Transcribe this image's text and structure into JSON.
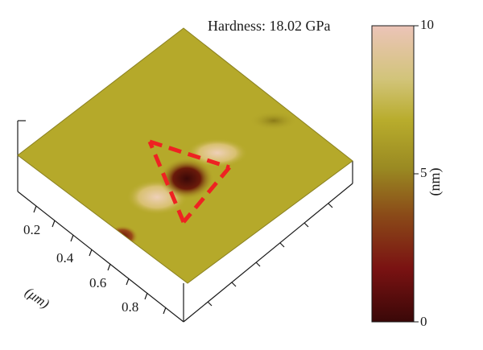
{
  "figure": {
    "title": "Hardness: 18.02 GPa"
  },
  "colorbar": {
    "max_label": "10",
    "mid_label": "5",
    "min_label": "0",
    "unit": "(nm)",
    "range": [
      0,
      10
    ],
    "colors": [
      "#3a0808",
      "#7a1212",
      "#8a5a1a",
      "#a8a020",
      "#c0b030",
      "#e8c0b0"
    ]
  },
  "axis": {
    "ticks": [
      "0.2",
      "0.4",
      "0.6",
      "0.8"
    ],
    "unit_label": "(μm)"
  },
  "colors": {
    "surface": "#b5a92a",
    "marker": "#ee2222"
  }
}
